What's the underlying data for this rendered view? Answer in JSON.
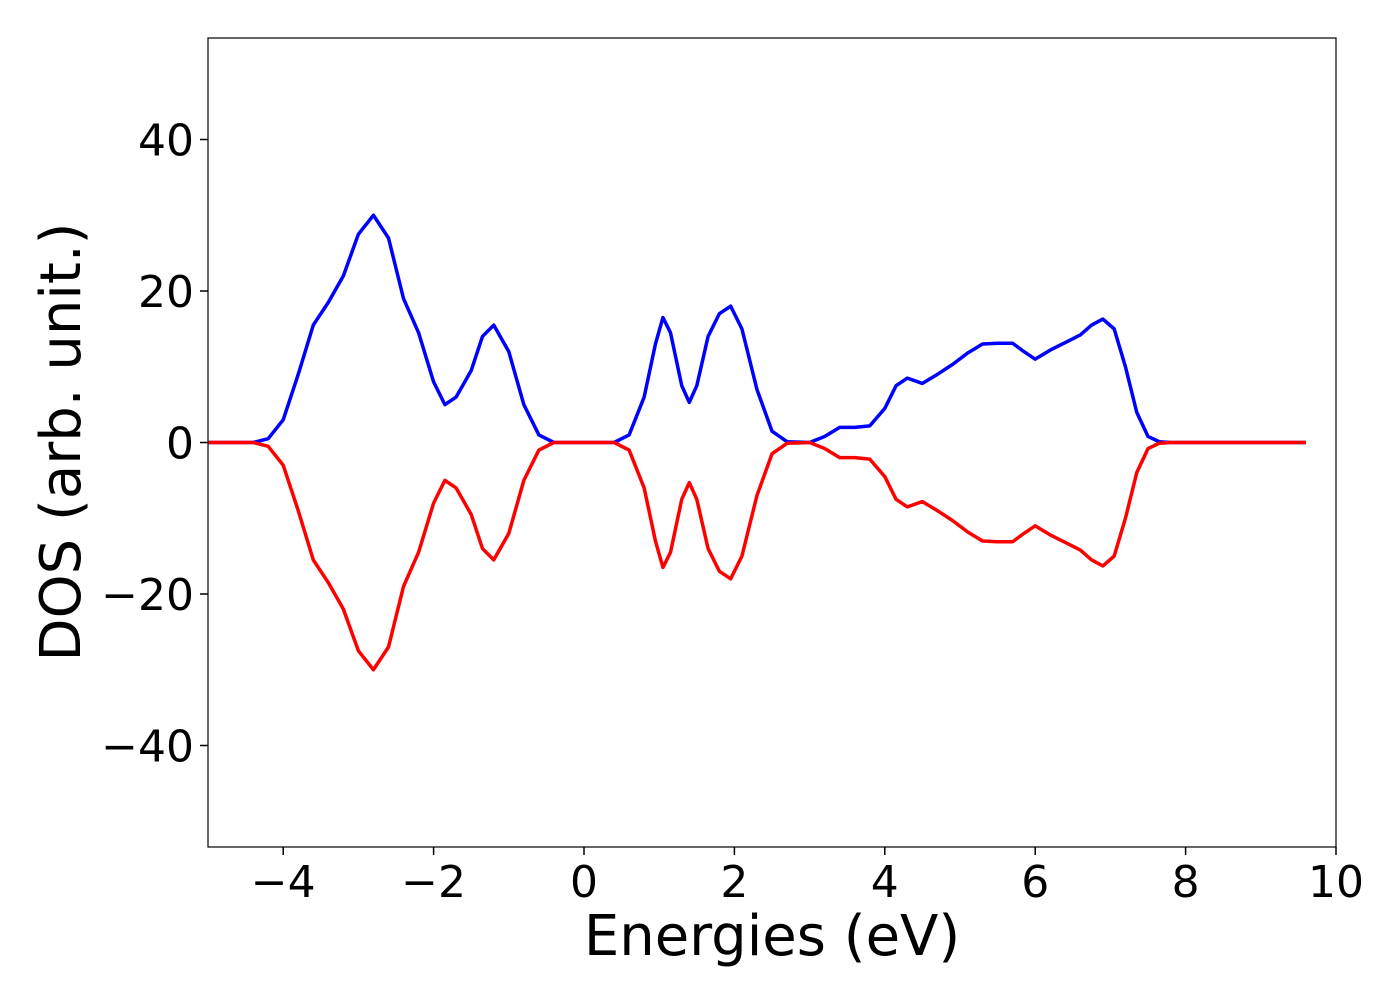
{
  "chart_data": {
    "type": "line",
    "x_label": "Energies (eV)",
    "y_label": "DOS (arb. unit.)",
    "x": [
      -5,
      -4.4,
      -4.2,
      -4.0,
      -3.8,
      -3.6,
      -3.4,
      -3.2,
      -3.0,
      -2.8,
      -2.6,
      -2.4,
      -2.2,
      -2.0,
      -1.85,
      -1.7,
      -1.5,
      -1.35,
      -1.2,
      -1.0,
      -0.8,
      -0.6,
      -0.4,
      0.4,
      0.6,
      0.8,
      0.95,
      1.05,
      1.15,
      1.3,
      1.4,
      1.5,
      1.65,
      1.8,
      1.95,
      2.1,
      2.3,
      2.5,
      2.7,
      3.0,
      3.2,
      3.4,
      3.6,
      3.8,
      4.0,
      4.15,
      4.3,
      4.5,
      4.7,
      4.9,
      5.1,
      5.3,
      5.5,
      5.7,
      5.85,
      6.0,
      6.2,
      6.4,
      6.6,
      6.75,
      6.9,
      7.05,
      7.2,
      7.35,
      7.5,
      7.65,
      7.8,
      9.6
    ],
    "series": [
      {
        "color": "#0000ff",
        "values": [
          0,
          0,
          0.5,
          3,
          9,
          15.5,
          18.5,
          22,
          27.5,
          30,
          27,
          19,
          14.5,
          8,
          5,
          6,
          9.5,
          14,
          15.5,
          12,
          5,
          1,
          0,
          0,
          1,
          6,
          13,
          16.5,
          14.5,
          7.5,
          5.3,
          7.5,
          14,
          17,
          18,
          15,
          7,
          1.5,
          0.1,
          0,
          0.8,
          2,
          2,
          2.2,
          4.5,
          7.5,
          8.5,
          7.8,
          9,
          10.3,
          11.8,
          13,
          13.1,
          13.1,
          12,
          11,
          12.2,
          13.2,
          14.2,
          15.5,
          16.3,
          15,
          10,
          4,
          0.8,
          0.1,
          0,
          0
        ]
      },
      {
        "color": "#ff0000",
        "values": [
          0,
          0,
          -0.5,
          -3,
          -9,
          -15.5,
          -18.5,
          -22,
          -27.5,
          -30,
          -27,
          -19,
          -14.5,
          -8,
          -5,
          -6,
          -9.5,
          -14,
          -15.5,
          -12,
          -5,
          -1,
          0,
          0,
          -1,
          -6,
          -13,
          -16.5,
          -14.5,
          -7.5,
          -5.3,
          -7.5,
          -14,
          -17,
          -18,
          -15,
          -7,
          -1.5,
          -0.1,
          0,
          -0.8,
          -2,
          -2,
          -2.2,
          -4.5,
          -7.5,
          -8.5,
          -7.8,
          -9,
          -10.3,
          -11.8,
          -13,
          -13.1,
          -13.1,
          -12,
          -11,
          -12.2,
          -13.2,
          -14.2,
          -15.5,
          -16.3,
          -15,
          -10,
          -4,
          -0.8,
          -0.1,
          0,
          0
        ]
      }
    ],
    "xlim": [
      -5,
      10
    ],
    "xticks": [
      {
        "value": -4,
        "label": "−4"
      },
      {
        "value": -2,
        "label": "−2"
      },
      0,
      2,
      4,
      6,
      8,
      10
    ],
    "ylim": [
      -53.4,
      53.4
    ],
    "yticks": [
      {
        "value": -40,
        "label": "−40"
      },
      {
        "value": -20,
        "label": "−20"
      },
      0,
      20,
      40
    ]
  }
}
